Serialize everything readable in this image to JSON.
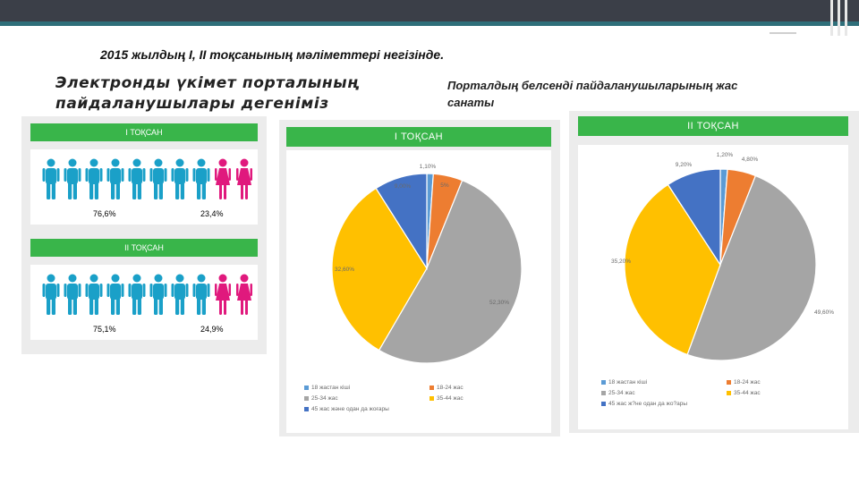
{
  "subtitle": "2015 жылдың I, II тоқсанының мәліметтері негізінде.",
  "title_left": "Электронды үкімет порталының пайдаланушылары дегеніміз",
  "title_right": "Порталдың белсенді пайдаланушыларының жас санаты",
  "gender": {
    "q1": {
      "label": "I ТОҚСАН",
      "male_pct": "76,6%",
      "female_pct": "23,4%"
    },
    "q2": {
      "label": "II ТОҚСАН",
      "male_pct": "75,1%",
      "female_pct": "24,9%"
    },
    "male_color": "#1aa0c8",
    "female_color": "#e0197d",
    "male_icon": "man-icon",
    "female_icon": "woman-icon"
  },
  "legend_q1": [
    "18 жастан кіші",
    "18-24 жас",
    "25-34 жас",
    "35-44 жас",
    "45 жас және одан да жоғары"
  ],
  "legend_q2": [
    "18 жастан кіші",
    "18-24 жас",
    "25-34 жас",
    "35-44 жас",
    "45 жас ж?не одан да жо?ары"
  ],
  "chart_data": [
    {
      "type": "pie",
      "title": "I ТОҚСАН",
      "categories": [
        "18 жастан кіші",
        "18-24 жас",
        "25-34 жас",
        "35-44 жас",
        "45 жас және одан да жоғары"
      ],
      "values": [
        1.1,
        5.0,
        52.3,
        32.6,
        9.0
      ],
      "labels": [
        "1,10%",
        "5%",
        "52,30%",
        "32,60%",
        "9,00%"
      ],
      "colors": [
        "#5b9bd5",
        "#ed7d31",
        "#a5a5a5",
        "#ffc000",
        "#4472c4"
      ],
      "legend": "bottom"
    },
    {
      "type": "pie",
      "title": "II ТОҚСАН",
      "categories": [
        "18 жастан кіші",
        "18-24 жас",
        "25-34 жас",
        "35-44 жас",
        "45 жас ж?не одан да жо?ары"
      ],
      "values": [
        1.2,
        4.8,
        49.6,
        35.2,
        9.2
      ],
      "labels": [
        "1,20%",
        "4,80%",
        "49,60%",
        "35,20%",
        "9,20%"
      ],
      "colors": [
        "#5b9bd5",
        "#ed7d31",
        "#a5a5a5",
        "#ffc000",
        "#4472c4"
      ],
      "legend": "bottom"
    }
  ]
}
